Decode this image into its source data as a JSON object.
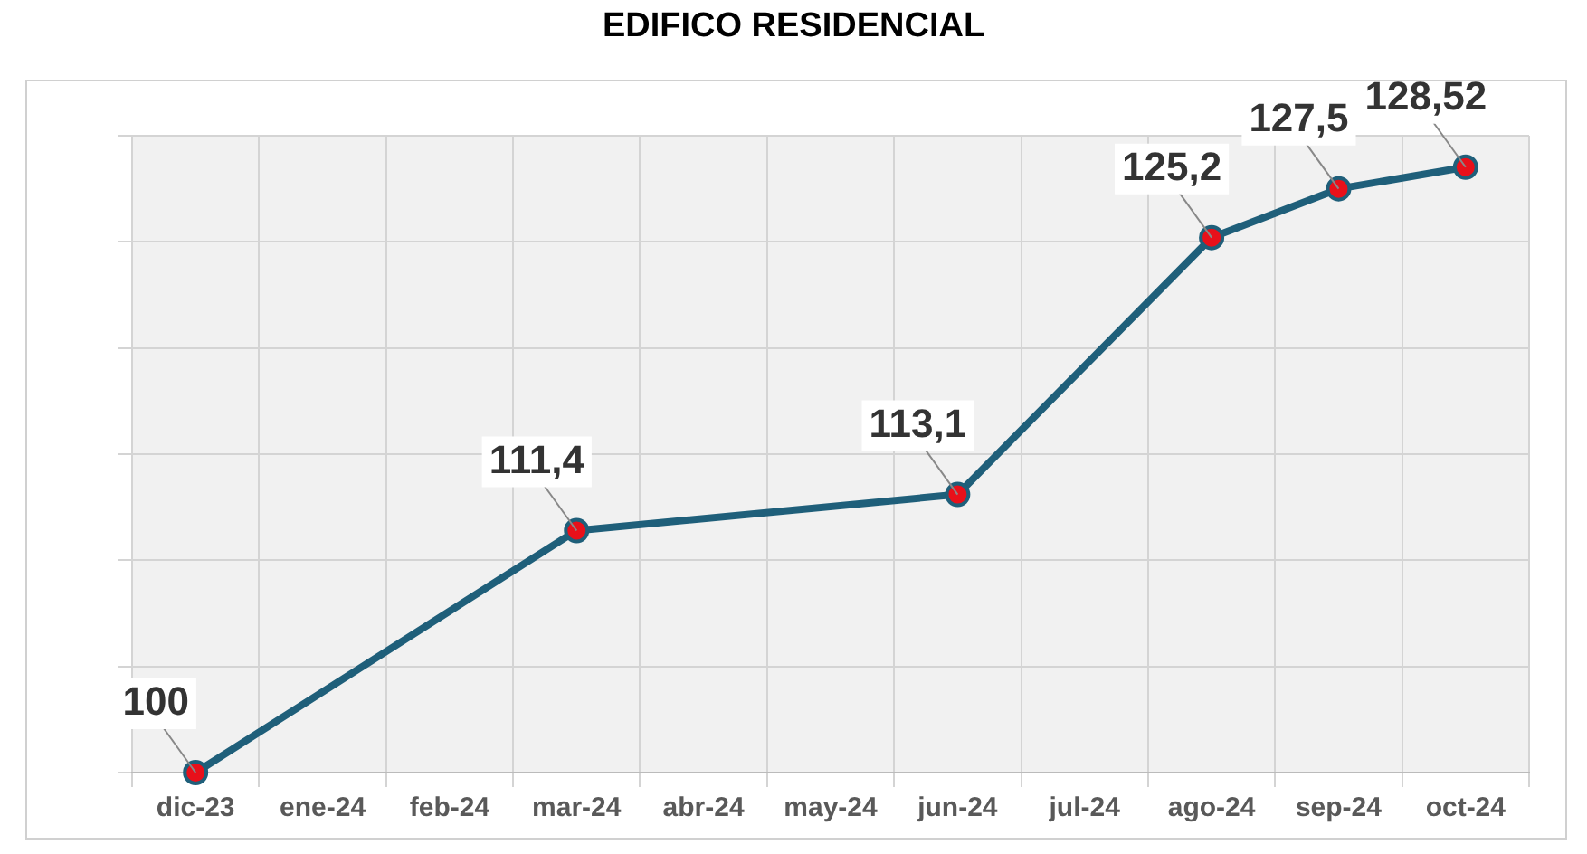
{
  "chart_data": {
    "type": "line",
    "title": "EDIFICO RESIDENCIAL",
    "categories": [
      "dic-23",
      "ene-24",
      "feb-24",
      "mar-24",
      "abr-24",
      "may-24",
      "jun-24",
      "jul-24",
      "ago-24",
      "sep-24",
      "oct-24"
    ],
    "series": [
      {
        "color": "#1f5f7a",
        "values": [
          100,
          null,
          null,
          111.4,
          null,
          null,
          113.1,
          null,
          125.2,
          127.5,
          128.52
        ],
        "value_labels": [
          "100",
          null,
          null,
          "111,4",
          null,
          null,
          "113,1",
          null,
          "125,2",
          "127,5",
          "128,52"
        ]
      }
    ],
    "tick_labels": "x",
    "grid": true,
    "marker": "circle",
    "line_style": "solid",
    "legend": false
  }
}
